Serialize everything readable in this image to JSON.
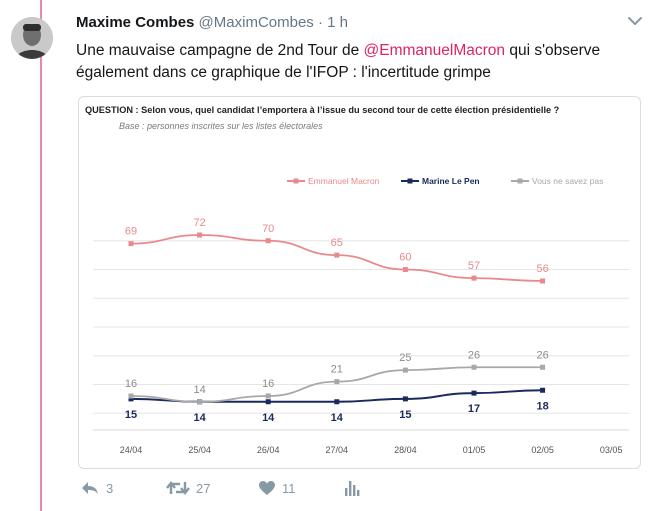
{
  "tweet": {
    "author_name": "Maxime Combes",
    "author_handle": "@MaximCombes",
    "separator": "·",
    "time": "1 h",
    "text_before": "Une mauvaise campagne de 2nd Tour de ",
    "mention": "@EmmanuelMacron",
    "text_after": " qui s'observe également dans ce graphique de l'IFOP : l'incertitude grimpe"
  },
  "media": {
    "question": "QUESTION : Selon vous, quel candidat l’emportera à l’issue du second tour de cette élection présidentielle ?",
    "base": "Base : personnes inscrites sur les listes électorales"
  },
  "chart_data": {
    "type": "line",
    "categories": [
      "24/04",
      "25/04",
      "26/04",
      "27/04",
      "28/04",
      "01/05",
      "02/05",
      "03/05"
    ],
    "series": [
      {
        "name": "Emmanuel Macron",
        "color": "#e8898c",
        "values": [
          69,
          72,
          70,
          65,
          60,
          57,
          56,
          null
        ]
      },
      {
        "name": "Marine Le Pen",
        "color": "#1b2a5e",
        "values": [
          15,
          14,
          14,
          14,
          15,
          17,
          18,
          null
        ]
      },
      {
        "name": "Vous ne savez pas",
        "color": "#a8a8a8",
        "values": [
          16,
          14,
          16,
          21,
          25,
          26,
          26,
          null
        ]
      }
    ],
    "legend_position": "top-right",
    "grid": true
  },
  "actions": {
    "reply_count": "3",
    "retweet_count": "27",
    "like_count": "11"
  },
  "icons": {
    "caret": "chevron-down-icon",
    "reply": "reply-icon",
    "retweet": "retweet-icon",
    "like": "heart-icon",
    "analytics": "analytics-icon"
  }
}
